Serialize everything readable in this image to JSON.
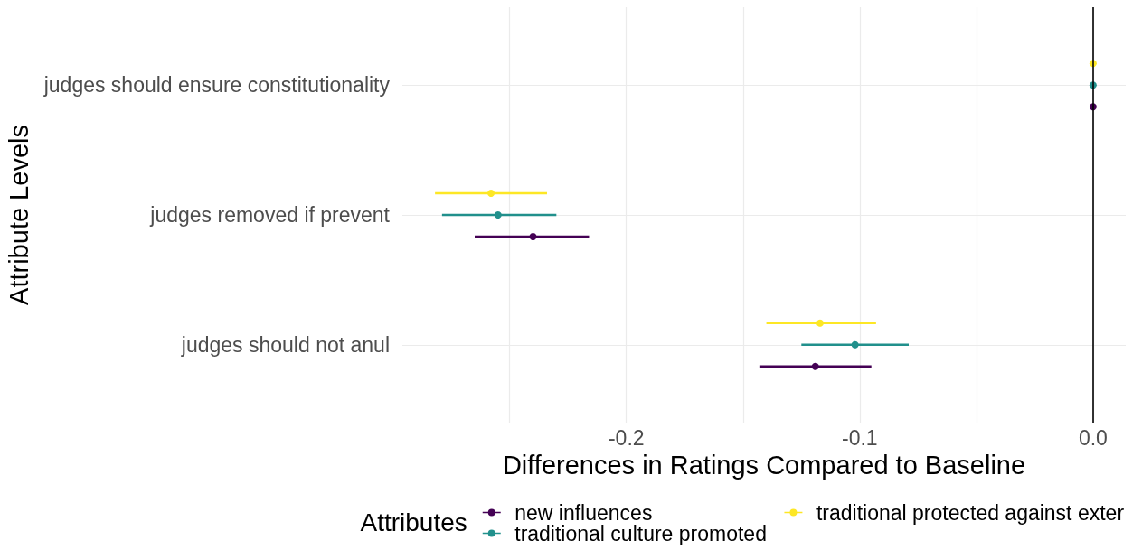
{
  "chart_data": {
    "type": "scatter",
    "orientation": "horizontal",
    "xlabel": "Differences in Ratings Compared to Baseline",
    "ylabel": "Attribute Levels",
    "legend_title": "Attributes",
    "categories": [
      "judges should ensure constitutionality",
      "judges removed if prevent",
      "judges should not anul"
    ],
    "series": [
      {
        "name": "new influences",
        "color": "#440154",
        "values": [
          0,
          -0.24,
          -0.119
        ],
        "errors": [
          null,
          [
            -0.265,
            -0.216
          ],
          [
            -0.143,
            -0.095
          ]
        ]
      },
      {
        "name": "traditional culture promoted",
        "color": "#21908c",
        "values": [
          0,
          -0.255,
          -0.102
        ],
        "errors": [
          null,
          [
            -0.279,
            -0.23
          ],
          [
            -0.125,
            -0.079
          ]
        ]
      },
      {
        "name": "traditional protected against exter",
        "color": "#fde725",
        "values": [
          0,
          -0.258,
          -0.117
        ],
        "errors": [
          null,
          [
            -0.282,
            -0.234
          ],
          [
            -0.14,
            -0.093
          ]
        ]
      }
    ],
    "xlim": [
      -0.296,
      0.014
    ],
    "xticks": [
      {
        "value": -0.25,
        "label": null
      },
      -0.2,
      {
        "value": -0.15,
        "label": null
      },
      -0.1,
      {
        "value": -0.05,
        "label": null
      },
      {
        "value": 0,
        "label": "0.0"
      }
    ],
    "ref_lines": [
      {
        "axis": "x",
        "value": 0,
        "color": "#000000"
      }
    ],
    "grid": true,
    "legend": "bottom",
    "marker": "circle"
  }
}
